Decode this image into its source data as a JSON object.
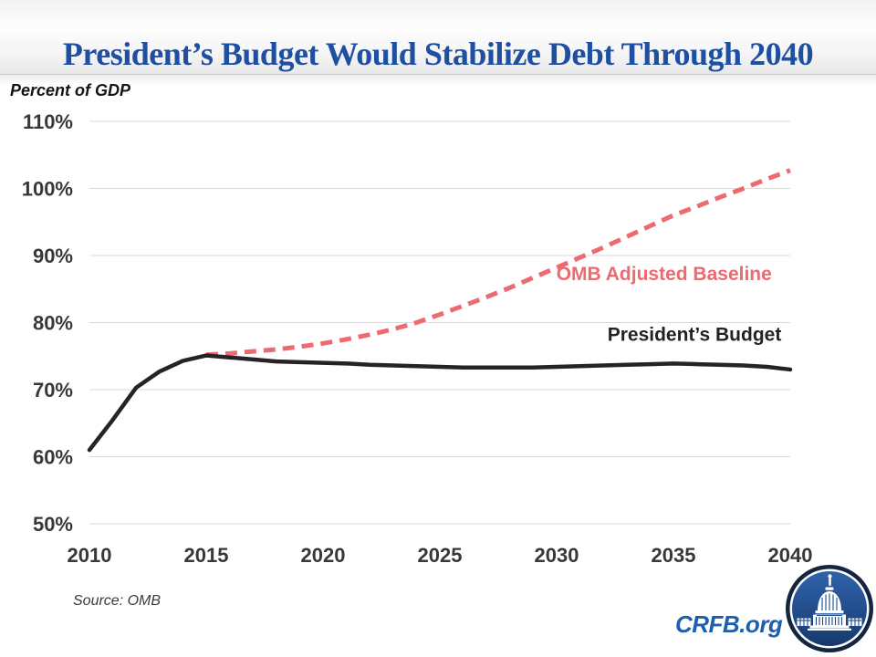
{
  "header": {
    "title": "President’s Budget Would Stabilize Debt Through 2040"
  },
  "unit_label": "Percent of GDP",
  "source_note": "Source: OMB",
  "footer": {
    "brand": "CRFB.org",
    "logo": "capitol-dome-logo"
  },
  "colors": {
    "title_blue": "#1e4fa1",
    "brand_blue": "#1d5fae",
    "baseline_red": "#ec6a70",
    "budget_black": "#272324",
    "gridline_gray": "#d9d9d9",
    "tick_text": "#383838",
    "logo_navy": "#15253f",
    "logo_fill_blue": "#1d4a86"
  },
  "chart_data": {
    "type": "line",
    "title": "President’s Budget Would Stabilize Debt Through 2040",
    "ylabel": "Percent of GDP",
    "xlabel": "",
    "xlim": [
      2010,
      2040
    ],
    "ylim": [
      50,
      110
    ],
    "xticks": [
      2010,
      2015,
      2020,
      2025,
      2030,
      2035,
      2040
    ],
    "yticks": [
      50,
      60,
      70,
      80,
      90,
      100,
      110
    ],
    "ytick_suffix": "%",
    "grid": true,
    "legend": "inline-labels",
    "series": [
      {
        "name": "OMB Adjusted Baseline",
        "color": "#ec6a70",
        "width": 5,
        "dashed": true,
        "dash_pattern": "13 8",
        "start_year": 2015,
        "x_step": 1,
        "values": [
          75.2,
          75.4,
          75.7,
          76.0,
          76.4,
          76.9,
          77.5,
          78.2,
          79.0,
          80.0,
          81.2,
          82.5,
          83.8,
          85.2,
          86.7,
          88.2,
          89.7,
          91.2,
          92.8,
          94.4,
          96.0,
          97.3,
          98.7,
          100.0,
          101.4,
          102.7
        ]
      },
      {
        "name": "President’s Budget",
        "color": "#272324",
        "width": 4.5,
        "dashed": false,
        "start_year": 2010,
        "x_step": 1,
        "values": [
          61.0,
          65.5,
          70.3,
          72.7,
          74.3,
          75.1,
          74.8,
          74.5,
          74.2,
          74.1,
          74.0,
          73.9,
          73.7,
          73.6,
          73.5,
          73.4,
          73.3,
          73.3,
          73.3,
          73.3,
          73.4,
          73.5,
          73.6,
          73.7,
          73.8,
          73.9,
          73.8,
          73.7,
          73.6,
          73.4,
          73.0
        ]
      }
    ],
    "annotations": [
      {
        "text": "OMB Adjusted Baseline",
        "x": 2034.6,
        "y": 86.3,
        "color": "#ec6a70"
      },
      {
        "text": "President’s Budget",
        "x": 2035.9,
        "y": 77.3,
        "color": "#232323"
      }
    ]
  }
}
